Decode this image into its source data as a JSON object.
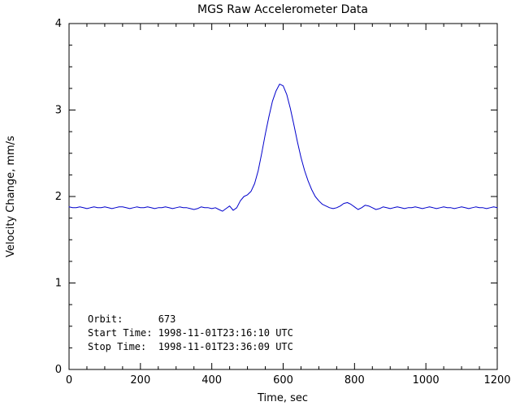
{
  "window": {
    "background": "#ffffff"
  },
  "chart_data": {
    "type": "line",
    "title": "MGS Raw Accelerometer Data",
    "xlabel": "Time, sec",
    "ylabel": "Velocity Change, mm/s",
    "xlim": [
      0,
      1200
    ],
    "ylim": [
      0,
      4
    ],
    "xticks": [
      0,
      200,
      400,
      600,
      800,
      1000,
      1200
    ],
    "yticks": [
      0,
      1,
      2,
      3,
      4
    ],
    "x_minor_interval": 50,
    "y_minor_interval": 0.25,
    "grid": false,
    "legend": "none",
    "line_color": "#0000cc",
    "axis_color": "#000000",
    "series": [
      {
        "name": "Velocity Change",
        "x_start": 0,
        "x_step": 10,
        "y": [
          1.88,
          1.87,
          1.87,
          1.88,
          1.87,
          1.86,
          1.87,
          1.88,
          1.87,
          1.87,
          1.88,
          1.87,
          1.86,
          1.87,
          1.88,
          1.88,
          1.87,
          1.86,
          1.87,
          1.88,
          1.87,
          1.87,
          1.88,
          1.87,
          1.86,
          1.87,
          1.87,
          1.88,
          1.87,
          1.86,
          1.87,
          1.88,
          1.87,
          1.87,
          1.86,
          1.85,
          1.86,
          1.88,
          1.87,
          1.87,
          1.86,
          1.87,
          1.85,
          1.83,
          1.86,
          1.89,
          1.84,
          1.87,
          1.95,
          2.0,
          2.02,
          2.06,
          2.15,
          2.3,
          2.5,
          2.72,
          2.92,
          3.1,
          3.22,
          3.3,
          3.28,
          3.18,
          3.02,
          2.83,
          2.63,
          2.45,
          2.3,
          2.18,
          2.08,
          2.0,
          1.95,
          1.91,
          1.89,
          1.87,
          1.86,
          1.87,
          1.89,
          1.92,
          1.93,
          1.91,
          1.88,
          1.85,
          1.87,
          1.9,
          1.89,
          1.87,
          1.85,
          1.86,
          1.88,
          1.87,
          1.86,
          1.87,
          1.88,
          1.87,
          1.86,
          1.87,
          1.87,
          1.88,
          1.87,
          1.86,
          1.87,
          1.88,
          1.87,
          1.86,
          1.87,
          1.88,
          1.87,
          1.87,
          1.86,
          1.87,
          1.88,
          1.87,
          1.86,
          1.87,
          1.88,
          1.87,
          1.87,
          1.86,
          1.87,
          1.88,
          1.87
        ]
      }
    ],
    "annotations": [
      {
        "name": "orbit",
        "text": "Orbit:      673"
      },
      {
        "name": "start-time",
        "text": "Start Time: 1998-11-01T23:16:10 UTC"
      },
      {
        "name": "stop-time",
        "text": "Stop Time:  1998-11-01T23:36:09 UTC"
      }
    ]
  }
}
